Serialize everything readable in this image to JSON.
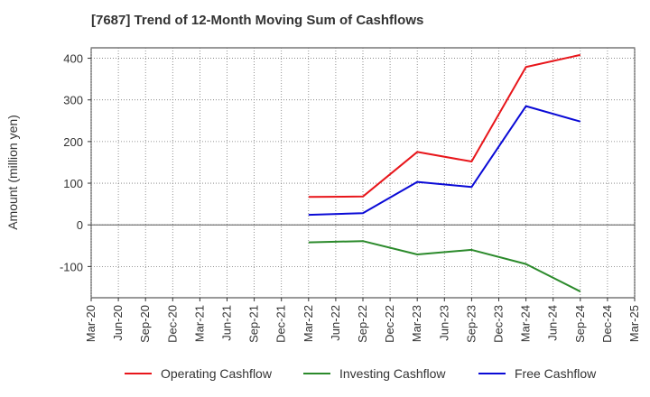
{
  "chart_data": {
    "type": "line",
    "title": "[7687]  Trend of 12-Month Moving Sum of Cashflows",
    "xlabel": "",
    "ylabel": "Amount (million yen)",
    "categories": [
      "Mar-20",
      "Jun-20",
      "Sep-20",
      "Dec-20",
      "Mar-21",
      "Jun-21",
      "Sep-21",
      "Dec-21",
      "Mar-22",
      "Jun-22",
      "Sep-22",
      "Dec-22",
      "Mar-23",
      "Jun-23",
      "Sep-23",
      "Dec-23",
      "Mar-24",
      "Jun-24",
      "Sep-24",
      "Dec-24",
      "Mar-25"
    ],
    "ylim": [
      -175,
      425
    ],
    "yticks": [
      -100,
      0,
      100,
      200,
      300,
      400
    ],
    "grid": true,
    "legend_position": "bottom",
    "series": [
      {
        "name": "Operating Cashflow",
        "color": "#e8161b",
        "x": [
          "Mar-22",
          "Sep-22",
          "Mar-23",
          "Sep-23",
          "Mar-24",
          "Sep-24"
        ],
        "values": [
          67,
          68,
          175,
          152,
          379,
          408
        ]
      },
      {
        "name": "Investing Cashflow",
        "color": "#2b8a2b",
        "x": [
          "Mar-22",
          "Sep-22",
          "Mar-23",
          "Sep-23",
          "Mar-24",
          "Sep-24"
        ],
        "values": [
          -42,
          -39,
          -71,
          -60,
          -94,
          -160
        ]
      },
      {
        "name": "Free Cashflow",
        "color": "#0a0ad6",
        "x": [
          "Mar-22",
          "Sep-22",
          "Mar-23",
          "Sep-23",
          "Mar-24",
          "Sep-24"
        ],
        "values": [
          24,
          28,
          103,
          91,
          285,
          248
        ]
      }
    ]
  }
}
